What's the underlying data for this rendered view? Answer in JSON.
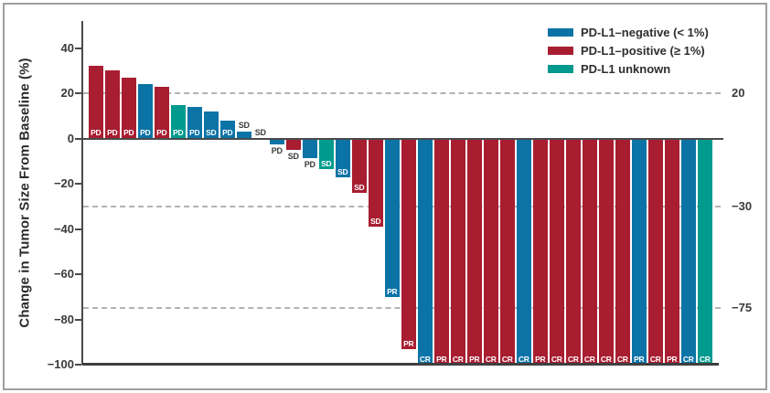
{
  "figure": {
    "background": "#ffffff",
    "frame_color": "#9e9e9e"
  },
  "legend": {
    "items": [
      {
        "group": "negative",
        "label": "PD-L1–negative (< 1%)",
        "color": "#0b73a6"
      },
      {
        "group": "positive",
        "label": "PD-L1–positive (≥ 1%)",
        "color": "#a81d30"
      },
      {
        "group": "unknown",
        "label": "PD-L1 unknown",
        "color": "#009a8e"
      }
    ]
  },
  "chart_data": {
    "type": "bar",
    "subtype": "waterfall",
    "title": "",
    "xlabel": "",
    "ylabel": "Change in Tumor Size From Baseline (%)",
    "ylim": [
      -100,
      52
    ],
    "legend_position": "top-right",
    "grid": "dashed horizontal reference lines at +20, -30, -75",
    "yticks": [
      {
        "value": 40,
        "label": "40"
      },
      {
        "value": 20,
        "label": "20"
      },
      {
        "value": 0,
        "label": "0"
      },
      {
        "value": -20,
        "label": "−20"
      },
      {
        "value": -40,
        "label": "−40"
      },
      {
        "value": -60,
        "label": "−60"
      },
      {
        "value": -80,
        "label": "−80"
      },
      {
        "value": -100,
        "label": "−100"
      }
    ],
    "reference_lines": [
      {
        "value": 20,
        "label": "20"
      },
      {
        "value": -30,
        "label": "−30"
      },
      {
        "value": -75,
        "label": "−75"
      }
    ],
    "groups": {
      "negative": {
        "label": "PD-L1–negative (< 1%)",
        "color": "#0b73a6"
      },
      "positive": {
        "label": "PD-L1–positive (≥ 1%)",
        "color": "#a81d30"
      },
      "unknown": {
        "label": "PD-L1 unknown",
        "color": "#009a8e"
      }
    },
    "bars": [
      {
        "value": 32,
        "response": "PD",
        "group": "positive"
      },
      {
        "value": 30,
        "response": "PD",
        "group": "positive"
      },
      {
        "value": 27,
        "response": "PD",
        "group": "positive"
      },
      {
        "value": 24,
        "response": "PD",
        "group": "negative"
      },
      {
        "value": 23,
        "response": "PD",
        "group": "positive"
      },
      {
        "value": 15,
        "response": "PD",
        "group": "unknown"
      },
      {
        "value": 14,
        "response": "PD",
        "group": "negative"
      },
      {
        "value": 12,
        "response": "SD",
        "group": "negative"
      },
      {
        "value": 8,
        "response": "PD",
        "group": "negative"
      },
      {
        "value": 3,
        "response": "SD",
        "group": "negative"
      },
      {
        "value": 0,
        "response": "SD",
        "group": "negative"
      },
      {
        "value": -2.5,
        "response": "PD",
        "group": "negative"
      },
      {
        "value": -5,
        "response": "SD",
        "group": "positive"
      },
      {
        "value": -8.5,
        "response": "PD",
        "group": "negative"
      },
      {
        "value": -13.5,
        "response": "SD",
        "group": "unknown"
      },
      {
        "value": -17,
        "response": "SD",
        "group": "negative"
      },
      {
        "value": -24,
        "response": "SD",
        "group": "positive"
      },
      {
        "value": -39,
        "response": "SD",
        "group": "positive"
      },
      {
        "value": -70,
        "response": "PR",
        "group": "negative"
      },
      {
        "value": -93,
        "response": "PR",
        "group": "positive"
      },
      {
        "value": -100,
        "response": "CR",
        "group": "negative"
      },
      {
        "value": -100,
        "response": "PR",
        "group": "positive"
      },
      {
        "value": -100,
        "response": "CR",
        "group": "positive"
      },
      {
        "value": -100,
        "response": "PR",
        "group": "positive"
      },
      {
        "value": -100,
        "response": "CR",
        "group": "positive"
      },
      {
        "value": -100,
        "response": "CR",
        "group": "positive"
      },
      {
        "value": -100,
        "response": "CR",
        "group": "negative"
      },
      {
        "value": -100,
        "response": "PR",
        "group": "positive"
      },
      {
        "value": -100,
        "response": "CR",
        "group": "positive"
      },
      {
        "value": -100,
        "response": "CR",
        "group": "positive"
      },
      {
        "value": -100,
        "response": "CR",
        "group": "positive"
      },
      {
        "value": -100,
        "response": "CR",
        "group": "positive"
      },
      {
        "value": -100,
        "response": "CR",
        "group": "positive"
      },
      {
        "value": -100,
        "response": "PR",
        "group": "negative"
      },
      {
        "value": -100,
        "response": "CR",
        "group": "positive"
      },
      {
        "value": -100,
        "response": "PR",
        "group": "positive"
      },
      {
        "value": -100,
        "response": "CR",
        "group": "negative"
      },
      {
        "value": -100,
        "response": "CR",
        "group": "unknown"
      }
    ]
  }
}
